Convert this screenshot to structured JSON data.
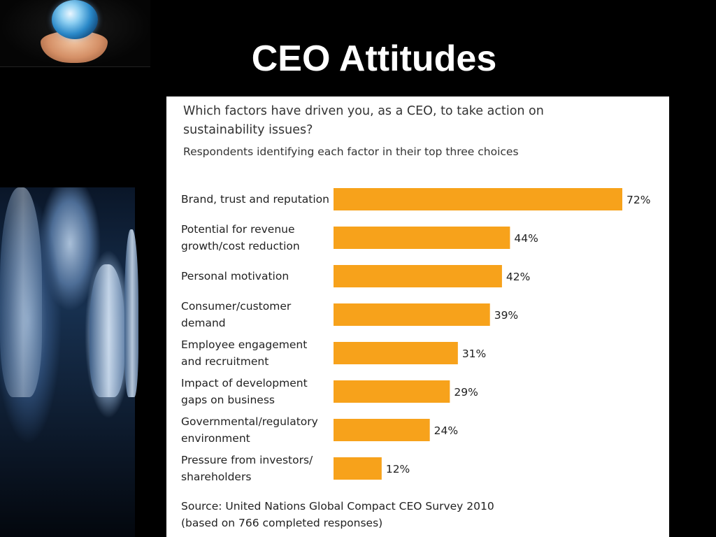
{
  "slide": {
    "title": "CEO Attitudes"
  },
  "header": {
    "question": "Which factors have driven you, as a CEO, to take action on sustainability issues?",
    "subtitle": "Respondents identifying each factor in their top three choices"
  },
  "chart_data": {
    "type": "bar",
    "orientation": "horizontal",
    "title": "Which factors have driven you, as a CEO, to take action on sustainability issues?",
    "subtitle": "Respondents identifying each factor in their top three choices",
    "categories": [
      [
        "Brand, trust and reputation"
      ],
      [
        "Potential for revenue",
        "growth/cost reduction"
      ],
      [
        "Personal motivation"
      ],
      [
        "Consumer/customer",
        "demand"
      ],
      [
        "Employee engagement",
        "and recruitment"
      ],
      [
        "Impact of development",
        "gaps on business"
      ],
      [
        "Governmental/regulatory",
        "environment"
      ],
      [
        "Pressure from investors/",
        "shareholders"
      ]
    ],
    "values": [
      72,
      44,
      42,
      39,
      31,
      29,
      24,
      12
    ],
    "value_labels": [
      "72%",
      "44%",
      "42%",
      "39%",
      "31%",
      "29%",
      "24%",
      "12%"
    ],
    "unit": "%",
    "xlim": [
      0,
      72
    ],
    "bar_color": "#f7a21b",
    "grid": false,
    "legend": "none"
  },
  "footer": {
    "source_line1": "Source: United Nations Global Compact CEO Survey 2010",
    "source_line2": "(based on 766 completed responses)"
  },
  "colors": {
    "background": "#000000",
    "panel": "#ffffff",
    "bar": "#f7a21b",
    "title": "#ffffff"
  }
}
